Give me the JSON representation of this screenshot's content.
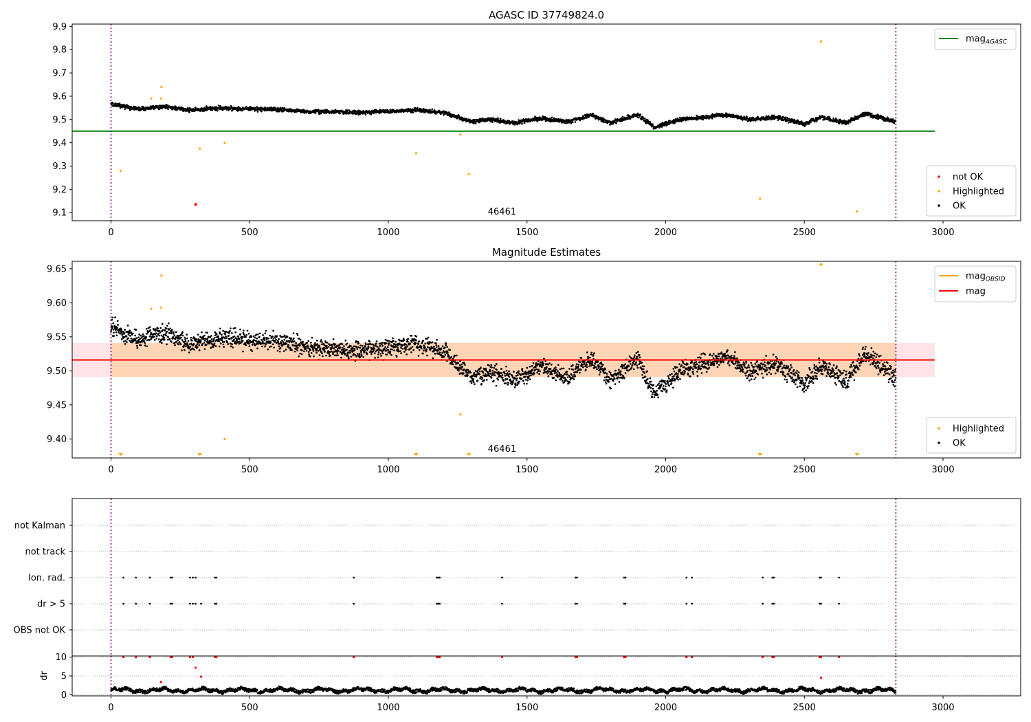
{
  "figure": {
    "title": "AGASC ID 37749824.0"
  },
  "chart_data": [
    {
      "type": "scatter",
      "title": "AGASC ID 37749824.0",
      "xlabel": "",
      "ylabel": "",
      "xlim": [
        -140,
        3280
      ],
      "ylim": [
        9.065,
        9.91
      ],
      "x_ticks": [
        0,
        500,
        1000,
        1500,
        2000,
        2500,
        3000
      ],
      "y_ticks": [
        9.1,
        9.2,
        9.3,
        9.4,
        9.5,
        9.6,
        9.7,
        9.8,
        9.9
      ],
      "y_tick_labels": [
        "9.1",
        "9.2",
        "9.3",
        "9.4",
        "9.5",
        "9.6",
        "9.7",
        "9.8",
        "9.9"
      ],
      "obsid_label": {
        "text": "46461",
        "x": 1410
      },
      "obsid_boundaries": [
        0,
        2830
      ],
      "hlines": [
        {
          "name": "mag_AGASC",
          "y": 9.45,
          "color": "#008000",
          "x_range": [
            -140,
            2970
          ]
        }
      ],
      "legend_top": {
        "position": "top-right",
        "entries": [
          {
            "label_main": "mag",
            "label_sub": "AGASC",
            "color": "#008000"
          }
        ]
      },
      "legend_bottom": {
        "position": "bottom-right",
        "entries": [
          {
            "label": "not OK",
            "color": "#ff0000"
          },
          {
            "label": "Highlighted",
            "color": "#ffa500"
          },
          {
            "label": "OK",
            "color": "#000000"
          }
        ]
      },
      "series": [
        {
          "name": "OK",
          "color": "#000000",
          "profile": {
            "x_range": [
              0,
              2830
            ],
            "n_points": 2830,
            "anchors_x": [
              0,
              100,
              200,
              280,
              400,
              500,
              560,
              700,
              900,
              1000,
              1100,
              1200,
              1250,
              1300,
              1370,
              1450,
              1550,
              1650,
              1730,
              1800,
              1900,
              1960,
              2050,
              2220,
              2300,
              2400,
              2500,
              2560,
              2650,
              2720,
              2830
            ],
            "anchors_y": [
              9.565,
              9.545,
              9.555,
              9.54,
              9.55,
              9.545,
              9.545,
              9.535,
              9.53,
              9.535,
              9.54,
              9.53,
              9.51,
              9.49,
              9.5,
              9.485,
              9.505,
              9.49,
              9.52,
              9.485,
              9.52,
              9.465,
              9.5,
              9.52,
              9.5,
              9.51,
              9.48,
              9.51,
              9.485,
              9.525,
              9.49
            ],
            "noise": 0.008
          }
        },
        {
          "name": "Highlighted",
          "color": "#ffa500",
          "points": [
            [
              35,
              9.28
            ],
            [
              145,
              9.59
            ],
            [
              180,
              9.59
            ],
            [
              182,
              9.64
            ],
            [
              320,
              9.375
            ],
            [
              410,
              9.4
            ],
            [
              1100,
              9.355
            ],
            [
              1260,
              9.435
            ],
            [
              1290,
              9.265
            ],
            [
              2340,
              9.16
            ],
            [
              2560,
              9.835
            ],
            [
              2690,
              9.105
            ]
          ]
        },
        {
          "name": "not OK",
          "color": "#ff0000",
          "points": [
            [
              305,
              9.135
            ]
          ]
        }
      ]
    },
    {
      "type": "scatter",
      "title": "Magnitude Estimates",
      "xlabel": "",
      "ylabel": "",
      "xlim": [
        -140,
        3280
      ],
      "ylim": [
        9.372,
        9.661
      ],
      "x_ticks": [
        0,
        500,
        1000,
        1500,
        2000,
        2500,
        3000
      ],
      "y_ticks": [
        9.4,
        9.45,
        9.5,
        9.55,
        9.6,
        9.65
      ],
      "y_tick_labels": [
        "9.40",
        "9.45",
        "9.50",
        "9.55",
        "9.60",
        "9.65"
      ],
      "obsid_label": {
        "text": "46461",
        "x": 1410
      },
      "obsid_boundaries": [
        0,
        2830
      ],
      "bands": [
        {
          "y_range": [
            9.491,
            9.541
          ],
          "x_range": [
            -140,
            2970
          ],
          "color": "#ffc0cb",
          "opacity": 0.45
        },
        {
          "y_range": [
            9.491,
            9.541
          ],
          "x_range": [
            0,
            2830
          ],
          "color": "#ffa500",
          "opacity": 0.22
        }
      ],
      "hlines": [
        {
          "name": "mag_OBSID",
          "y": 9.516,
          "color": "#ffa500",
          "x_range": [
            0,
            2830
          ]
        },
        {
          "name": "mag",
          "y": 9.516,
          "color": "#ff0000",
          "x_range": [
            -140,
            2970
          ]
        }
      ],
      "legend_top": {
        "position": "top-right",
        "entries": [
          {
            "label_main": "mag",
            "label_sub": "OBSID",
            "color": "#ffa500"
          },
          {
            "label_main": "mag",
            "label_sub": "",
            "color": "#ff0000"
          }
        ]
      },
      "legend_bottom": {
        "position": "bottom-right",
        "entries": [
          {
            "label": "Highlighted",
            "color": "#ffa500"
          },
          {
            "label": "OK",
            "color": "#000000"
          }
        ]
      },
      "series": [
        {
          "name": "OK",
          "color": "#000000",
          "profile": {
            "x_range": [
              0,
              2830
            ],
            "n_points": 2830,
            "anchors_x": [
              0,
              100,
              200,
              280,
              400,
              500,
              560,
              700,
              900,
              1000,
              1100,
              1200,
              1250,
              1300,
              1370,
              1450,
              1550,
              1650,
              1730,
              1800,
              1900,
              1960,
              2050,
              2220,
              2300,
              2400,
              2500,
              2560,
              2650,
              2720,
              2830
            ],
            "anchors_y": [
              9.565,
              9.545,
              9.555,
              9.54,
              9.55,
              9.545,
              9.545,
              9.535,
              9.53,
              9.535,
              9.54,
              9.53,
              9.51,
              9.49,
              9.5,
              9.485,
              9.505,
              9.49,
              9.52,
              9.485,
              9.52,
              9.465,
              9.5,
              9.52,
              9.5,
              9.51,
              9.48,
              9.51,
              9.485,
              9.525,
              9.49
            ],
            "noise": 0.012
          }
        },
        {
          "name": "Highlighted",
          "color": "#ffa500",
          "points": [
            [
              145,
              9.591
            ],
            [
              180,
              9.593
            ],
            [
              182,
              9.64
            ],
            [
              410,
              9.4
            ],
            [
              1260,
              9.436
            ]
          ]
        }
      ],
      "out_of_range_markers": [
        {
          "x": 35,
          "dir": "down"
        },
        {
          "x": 320,
          "dir": "down"
        },
        {
          "x": 1100,
          "dir": "down"
        },
        {
          "x": 1290,
          "dir": "down"
        },
        {
          "x": 2340,
          "dir": "down"
        },
        {
          "x": 2690,
          "dir": "down"
        },
        {
          "x": 2560,
          "dir": "up"
        }
      ]
    },
    {
      "type": "scatter",
      "title": "",
      "xlim": [
        -140,
        3280
      ],
      "obsid_boundaries": [
        0,
        2830
      ],
      "categories": [
        "OBS not OK",
        "dr > 5",
        "Ion. rad.",
        "not track",
        "not Kalman"
      ],
      "flag_events": {
        "Ion. rad.": [
          45,
          90,
          140,
          215,
          220,
          285,
          295,
          305,
          375,
          380,
          875,
          1175,
          1180,
          1185,
          1410,
          1675,
          1680,
          1850,
          1855,
          2075,
          2095,
          2350,
          2385,
          2390,
          2555,
          2560,
          2625
        ],
        "dr > 5": [
          45,
          90,
          140,
          215,
          220,
          285,
          295,
          305,
          325,
          375,
          380,
          875,
          1175,
          1180,
          1185,
          1410,
          1675,
          1680,
          1850,
          1855,
          2075,
          2095,
          2350,
          2385,
          2390,
          2555,
          2560,
          2625
        ]
      }
    },
    {
      "type": "scatter",
      "title": "",
      "xlabel": "",
      "ylabel": "dr",
      "xlim": [
        -140,
        3280
      ],
      "ylim": [
        -0.3,
        10.3
      ],
      "x_ticks": [
        0,
        500,
        1000,
        1500,
        2000,
        2500,
        3000
      ],
      "y_ticks": [
        0,
        5,
        10
      ],
      "y_tick_labels": [
        "0",
        "5",
        "10"
      ],
      "obsid_boundaries": [
        0,
        2830
      ],
      "series": [
        {
          "name": "dr",
          "color": "#000000",
          "profile": {
            "x_range": [
              0,
              2830
            ],
            "n_points": 2830,
            "base": 1.2,
            "noise": 0.45
          }
        },
        {
          "name": "dr > 5",
          "color": "#ff0000",
          "points": [
            [
              45,
              10
            ],
            [
              90,
              10
            ],
            [
              140,
              10
            ],
            [
              215,
              10
            ],
            [
              220,
              10
            ],
            [
              285,
              10
            ],
            [
              295,
              10
            ],
            [
              305,
              7.2
            ],
            [
              325,
              4.8
            ],
            [
              375,
              10
            ],
            [
              380,
              10
            ],
            [
              180,
              3.4
            ],
            [
              875,
              10
            ],
            [
              1175,
              10
            ],
            [
              1180,
              10
            ],
            [
              1185,
              10
            ],
            [
              1410,
              10
            ],
            [
              1675,
              10
            ],
            [
              1680,
              10
            ],
            [
              1850,
              10
            ],
            [
              1855,
              10
            ],
            [
              2075,
              10
            ],
            [
              2095,
              10
            ],
            [
              2350,
              10
            ],
            [
              2385,
              10
            ],
            [
              2390,
              10
            ],
            [
              2555,
              10
            ],
            [
              2560,
              10
            ],
            [
              2560,
              4.5
            ],
            [
              2625,
              10
            ]
          ]
        }
      ]
    }
  ]
}
